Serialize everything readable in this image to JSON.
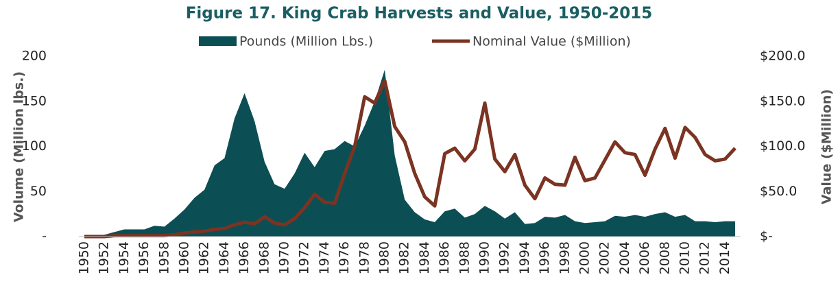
{
  "chart_data": {
    "type": "area-line",
    "title": "Figure 17. King Crab Harvests and Value, 1950-2015",
    "y_label": "Volume (Million lbs.)",
    "y2_label": "Value ($Million)",
    "categories": [
      "1950",
      null,
      "1952",
      null,
      "1954",
      null,
      "1956",
      null,
      "1958",
      null,
      "1960",
      null,
      "1962",
      null,
      "1964",
      null,
      "1966",
      null,
      "1968",
      null,
      "1970",
      null,
      "1972",
      null,
      "1974",
      null,
      "1976",
      null,
      "1978",
      null,
      "1980",
      null,
      "1982",
      null,
      "1984",
      null,
      "1986",
      null,
      "1988",
      null,
      "1990",
      null,
      "1992",
      null,
      "1994",
      null,
      "1996",
      null,
      "1998",
      null,
      "2000",
      null,
      "2002",
      null,
      "2004",
      null,
      "2006",
      null,
      "2008",
      null,
      "2010",
      null,
      "2012",
      null,
      "2014",
      null
    ],
    "series": [
      {
        "name": "Pounds (Million Lbs.)",
        "type": "area",
        "color": "#0b4f55",
        "values": [
          1,
          1,
          2,
          5,
          8,
          8,
          8,
          12,
          11,
          20,
          30,
          43,
          52,
          79,
          87,
          131,
          159,
          128,
          83,
          58,
          53,
          70,
          93,
          77,
          95,
          97,
          106,
          100,
          123,
          150,
          185,
          90,
          41,
          27,
          19,
          16,
          28,
          31,
          21,
          25,
          34,
          28,
          20,
          27,
          14,
          15,
          22,
          21,
          24,
          17,
          15,
          16,
          17,
          23,
          22,
          24,
          22,
          25,
          27,
          22,
          24,
          17,
          17,
          16,
          17,
          17
        ]
      },
      {
        "name": "Nominal Value ($Million)",
        "type": "line",
        "axis": "y2",
        "color": "#7b3322",
        "values": [
          0,
          0,
          0,
          1,
          1,
          1,
          1,
          1,
          1,
          2,
          4,
          5,
          6,
          8,
          9,
          13,
          16,
          14,
          22,
          15,
          13,
          20,
          32,
          47,
          38,
          37,
          70,
          100,
          155,
          148,
          173,
          122,
          105,
          70,
          44,
          34,
          92,
          98,
          84,
          97,
          148,
          86,
          72,
          91,
          57,
          42,
          65,
          58,
          57,
          88,
          62,
          65,
          85,
          105,
          93,
          91,
          68,
          97,
          120,
          87,
          121,
          110,
          91,
          84,
          86,
          98
        ]
      }
    ],
    "ylim": [
      0,
      200
    ],
    "yticks": [
      {
        "value": 0,
        "label": "-"
      },
      50,
      100,
      150,
      200
    ],
    "y2lim": [
      0,
      200
    ],
    "y2ticks": [
      {
        "value": 0,
        "label": "$-"
      },
      {
        "value": 50,
        "label": "$50.0"
      },
      {
        "value": 100,
        "label": "$100.0"
      },
      {
        "value": 150,
        "label": "$150.0"
      },
      {
        "value": 200,
        "label": "$200.0"
      }
    ],
    "legend": "top"
  }
}
